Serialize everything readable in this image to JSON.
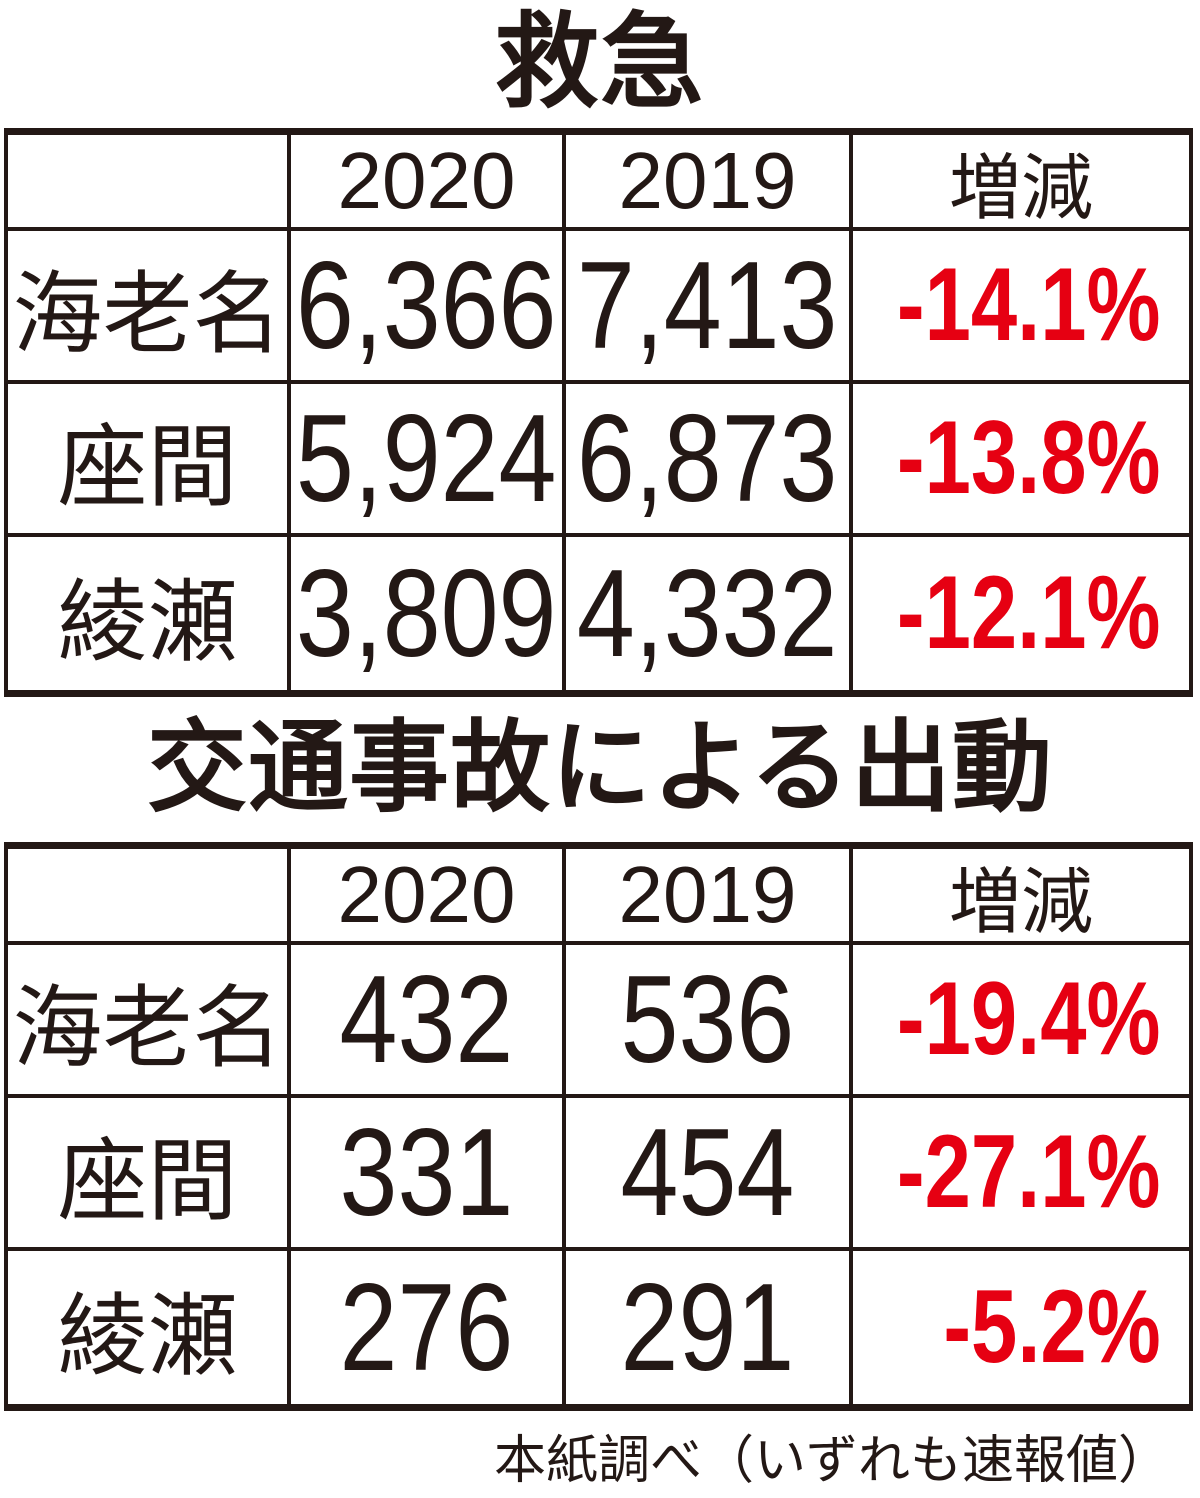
{
  "page": {
    "background": "#ffffff",
    "text_color": "#231815",
    "accent_red": "#e60012"
  },
  "tables": [
    {
      "title": "救急",
      "columns": {
        "c0": "",
        "c1": "2020",
        "c2": "2019",
        "c3": "増減"
      },
      "rows": [
        {
          "label": "海老名",
          "v2020": "6,366",
          "v2019": "7,413",
          "change": "-14.1%"
        },
        {
          "label": "座間",
          "v2020": "5,924",
          "v2019": "6,873",
          "change": "-13.8%"
        },
        {
          "label": "綾瀬",
          "v2020": "3,809",
          "v2019": "4,332",
          "change": "-12.1%"
        }
      ]
    },
    {
      "title": "交通事故による出動",
      "columns": {
        "c0": "",
        "c1": "2020",
        "c2": "2019",
        "c3": "増減"
      },
      "rows": [
        {
          "label": "海老名",
          "v2020": "432",
          "v2019": "536",
          "change": "-19.4%"
        },
        {
          "label": "座間",
          "v2020": "331",
          "v2019": "454",
          "change": "-27.1%"
        },
        {
          "label": "綾瀬",
          "v2020": "276",
          "v2019": "291",
          "change": "-5.2%"
        }
      ]
    }
  ],
  "footer": {
    "note": "本紙調べ（いずれも速報値）"
  },
  "chart_data": [
    {
      "type": "table",
      "title": "救急",
      "columns": [
        "",
        "2020",
        "2019",
        "増減"
      ],
      "rows": [
        [
          "海老名",
          6366,
          7413,
          "-14.1%"
        ],
        [
          "座間",
          5924,
          6873,
          "-13.8%"
        ],
        [
          "綾瀬",
          3809,
          4332,
          "-12.1%"
        ]
      ],
      "notes": "negative change values shown in red"
    },
    {
      "type": "table",
      "title": "交通事故による出動",
      "columns": [
        "",
        "2020",
        "2019",
        "増減"
      ],
      "rows": [
        [
          "海老名",
          432,
          536,
          "-19.4%"
        ],
        [
          "座間",
          331,
          454,
          "-27.1%"
        ],
        [
          "綾瀬",
          276,
          291,
          "-5.2%"
        ]
      ],
      "notes": "negative change values shown in red"
    }
  ]
}
